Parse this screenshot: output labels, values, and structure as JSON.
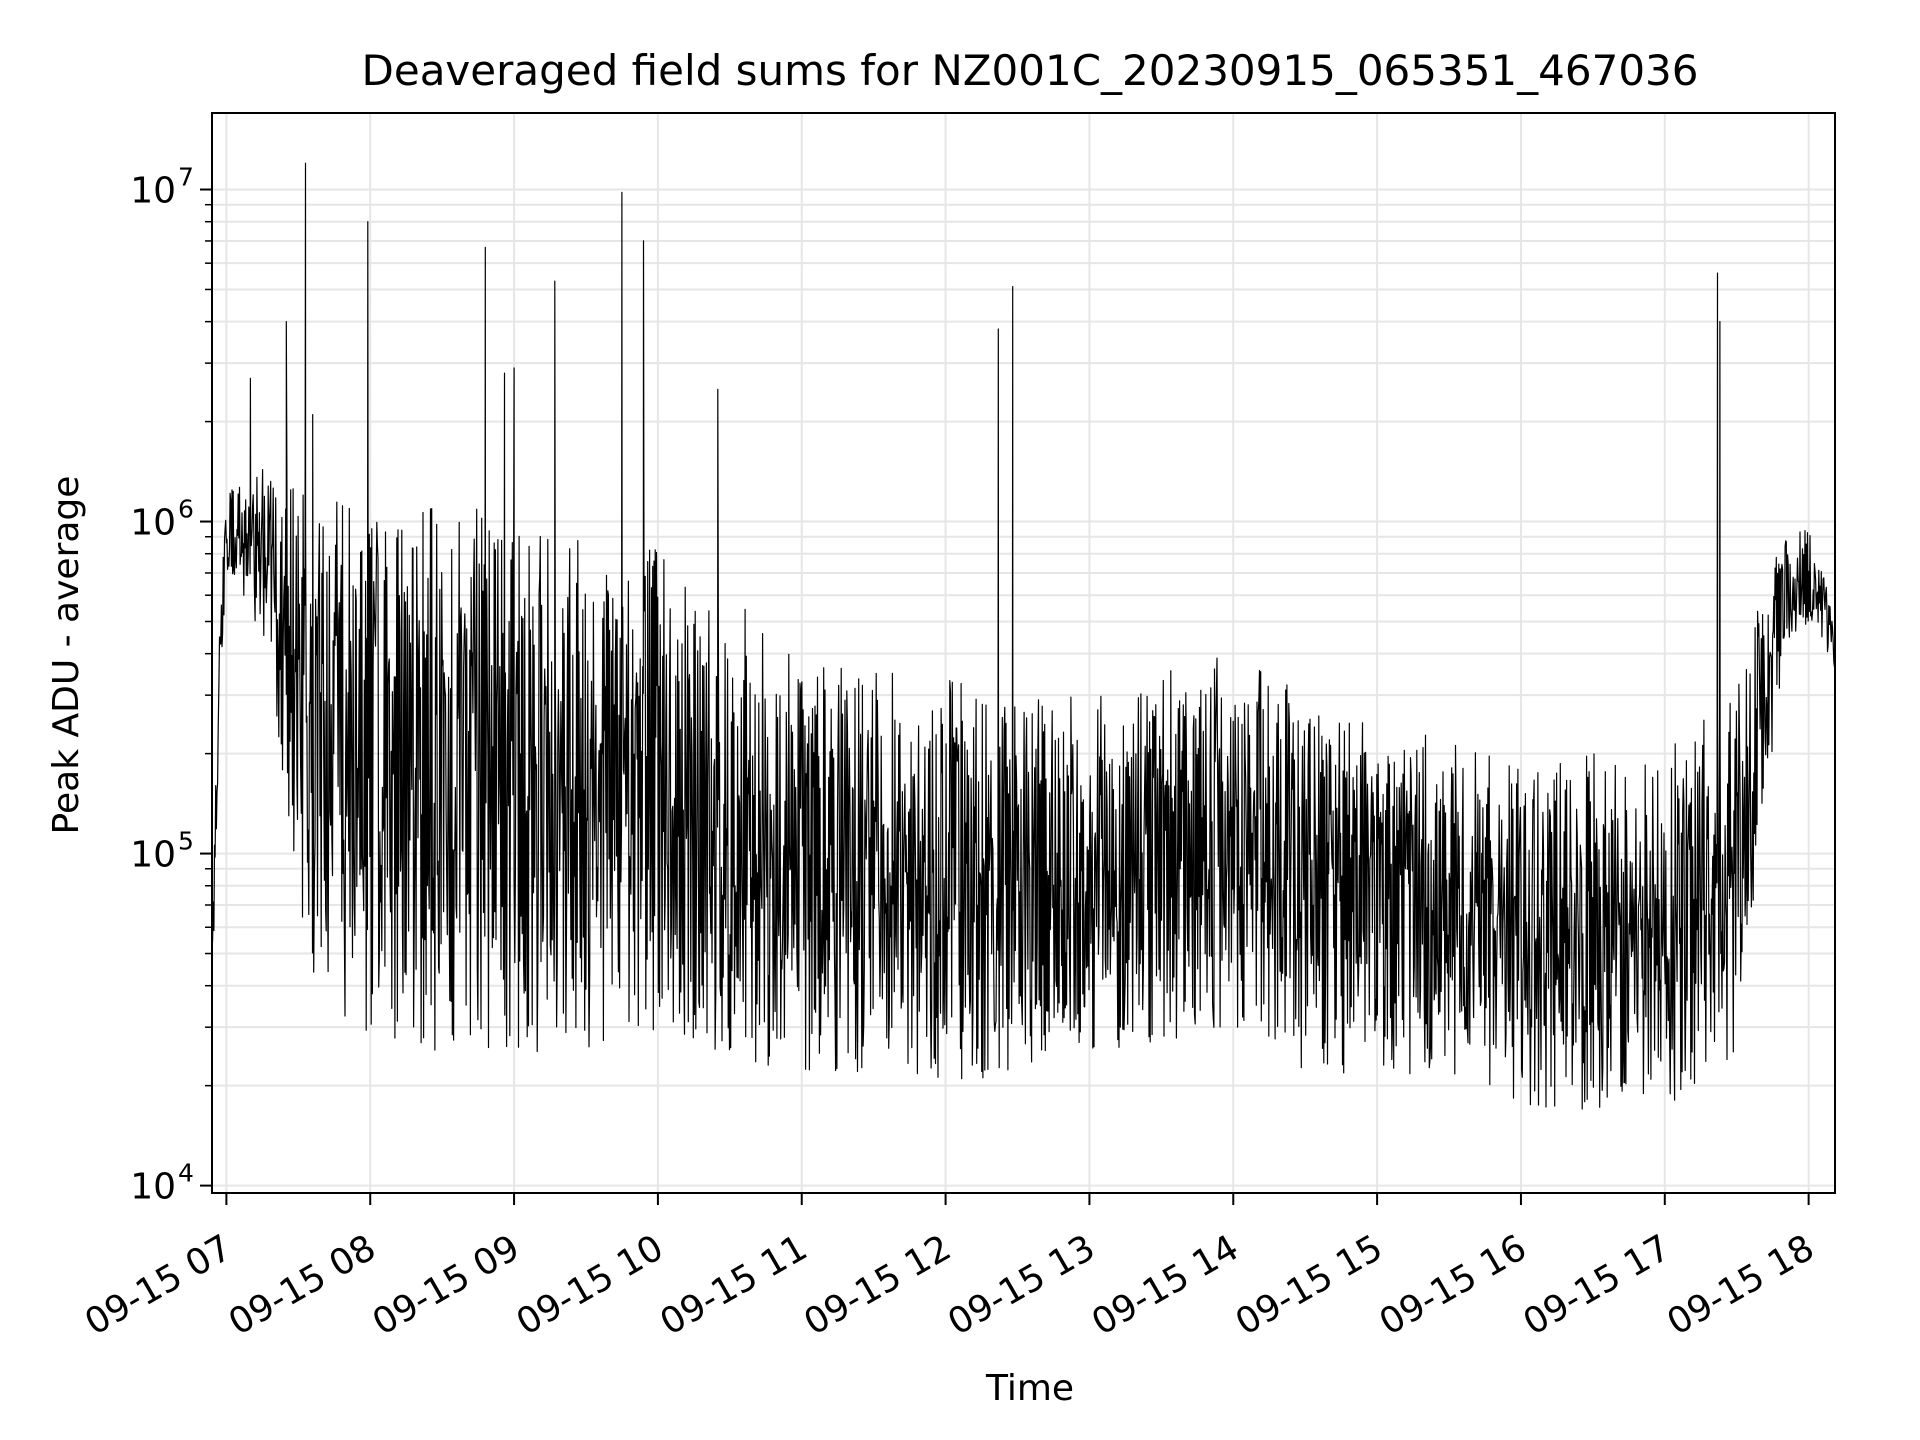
{
  "chart_data": {
    "type": "line",
    "title": "Deaveraged field sums for NZ001C_20230915_065351_467036",
    "xlabel": "Time",
    "ylabel": "Peak ADU - average",
    "yscale": "log",
    "grid": true,
    "legend": "none",
    "line_color": "#000000",
    "xlim": [
      "2023-09-15 06:54",
      "2023-09-15 18:11"
    ],
    "ylim": [
      9500,
      17000000
    ],
    "xticks": [
      {
        "label": "09-15 07",
        "value": "2023-09-15 07:00"
      },
      {
        "label": "09-15 08",
        "value": "2023-09-15 08:00"
      },
      {
        "label": "09-15 09",
        "value": "2023-09-15 09:00"
      },
      {
        "label": "09-15 10",
        "value": "2023-09-15 10:00"
      },
      {
        "label": "09-15 11",
        "value": "2023-09-15 11:00"
      },
      {
        "label": "09-15 12",
        "value": "2023-09-15 12:00"
      },
      {
        "label": "09-15 13",
        "value": "2023-09-15 13:00"
      },
      {
        "label": "09-15 14",
        "value": "2023-09-15 14:00"
      },
      {
        "label": "09-15 15",
        "value": "2023-09-15 15:00"
      },
      {
        "label": "09-15 16",
        "value": "2023-09-15 16:00"
      },
      {
        "label": "09-15 17",
        "value": "2023-09-15 17:00"
      },
      {
        "label": "09-15 18",
        "value": "2023-09-15 18:00"
      }
    ],
    "yticks": [
      {
        "base": "10",
        "exp": "4",
        "value": 10000
      },
      {
        "base": "10",
        "exp": "5",
        "value": 100000
      },
      {
        "base": "10",
        "exp": "6",
        "value": 1000000
      },
      {
        "base": "10",
        "exp": "7",
        "value": 10000000
      }
    ],
    "envelope": [
      {
        "t": "2023-09-15 06:54",
        "low": 35000,
        "high": 60000
      },
      {
        "t": "2023-09-15 06:57",
        "low": 250000,
        "high": 430000
      },
      {
        "t": "2023-09-15 07:00",
        "low": 700000,
        "high": 1300000
      },
      {
        "t": "2023-09-15 07:10",
        "low": 500000,
        "high": 1400000
      },
      {
        "t": "2023-09-15 07:20",
        "low": 300000,
        "high": 1500000
      },
      {
        "t": "2023-09-15 07:30",
        "low": 60000,
        "high": 1500000
      },
      {
        "t": "2023-09-15 07:40",
        "low": 35000,
        "high": 1200000
      },
      {
        "t": "2023-09-15 08:00",
        "low": 28000,
        "high": 1100000
      },
      {
        "t": "2023-09-15 08:30",
        "low": 25000,
        "high": 1100000
      },
      {
        "t": "2023-09-15 09:00",
        "low": 25000,
        "high": 1100000
      },
      {
        "t": "2023-09-15 09:30",
        "low": 25000,
        "high": 1000000
      },
      {
        "t": "2023-09-15 10:00",
        "low": 25000,
        "high": 900000
      },
      {
        "t": "2023-09-15 10:30",
        "low": 24000,
        "high": 600000
      },
      {
        "t": "2023-09-15 11:00",
        "low": 22000,
        "high": 400000
      },
      {
        "t": "2023-09-15 11:30",
        "low": 22000,
        "high": 350000
      },
      {
        "t": "2023-09-15 12:00",
        "low": 21000,
        "high": 350000
      },
      {
        "t": "2023-09-15 12:30",
        "low": 21000,
        "high": 300000
      },
      {
        "t": "2023-09-15 13:00",
        "low": 25000,
        "high": 300000
      },
      {
        "t": "2023-09-15 13:30",
        "low": 27000,
        "high": 350000
      },
      {
        "t": "2023-09-15 14:00",
        "low": 26000,
        "high": 400000
      },
      {
        "t": "2023-09-15 14:30",
        "low": 22000,
        "high": 300000
      },
      {
        "t": "2023-09-15 15:00",
        "low": 20000,
        "high": 250000
      },
      {
        "t": "2023-09-15 15:30",
        "low": 19000,
        "high": 220000
      },
      {
        "t": "2023-09-15 16:00",
        "low": 17000,
        "high": 180000
      },
      {
        "t": "2023-09-15 16:30",
        "low": 17000,
        "high": 200000
      },
      {
        "t": "2023-09-15 17:00",
        "low": 17000,
        "high": 200000
      },
      {
        "t": "2023-09-15 17:30",
        "low": 25000,
        "high": 350000
      },
      {
        "t": "2023-09-15 17:40",
        "low": 100000,
        "high": 600000
      },
      {
        "t": "2023-09-15 17:50",
        "low": 400000,
        "high": 900000
      },
      {
        "t": "2023-09-15 18:00",
        "low": 500000,
        "high": 1000000
      },
      {
        "t": "2023-09-15 18:11",
        "low": 350000,
        "high": 550000
      }
    ],
    "spikes": [
      {
        "t": "2023-09-15 07:10",
        "y": 2700000
      },
      {
        "t": "2023-09-15 07:25",
        "y": 4000000
      },
      {
        "t": "2023-09-15 07:33",
        "y": 12000000
      },
      {
        "t": "2023-09-15 07:36",
        "y": 2100000
      },
      {
        "t": "2023-09-15 07:59",
        "y": 8000000
      },
      {
        "t": "2023-09-15 08:48",
        "y": 6700000
      },
      {
        "t": "2023-09-15 08:56",
        "y": 2800000
      },
      {
        "t": "2023-09-15 09:00",
        "y": 2900000
      },
      {
        "t": "2023-09-15 09:17",
        "y": 5300000
      },
      {
        "t": "2023-09-15 09:45",
        "y": 9800000
      },
      {
        "t": "2023-09-15 09:54",
        "y": 7000000
      },
      {
        "t": "2023-09-15 10:25",
        "y": 2500000
      },
      {
        "t": "2023-09-15 12:22",
        "y": 3800000
      },
      {
        "t": "2023-09-15 12:28",
        "y": 5100000
      },
      {
        "t": "2023-09-15 17:22",
        "y": 5600000
      },
      {
        "t": "2023-09-15 17:23",
        "y": 4000000
      }
    ]
  }
}
